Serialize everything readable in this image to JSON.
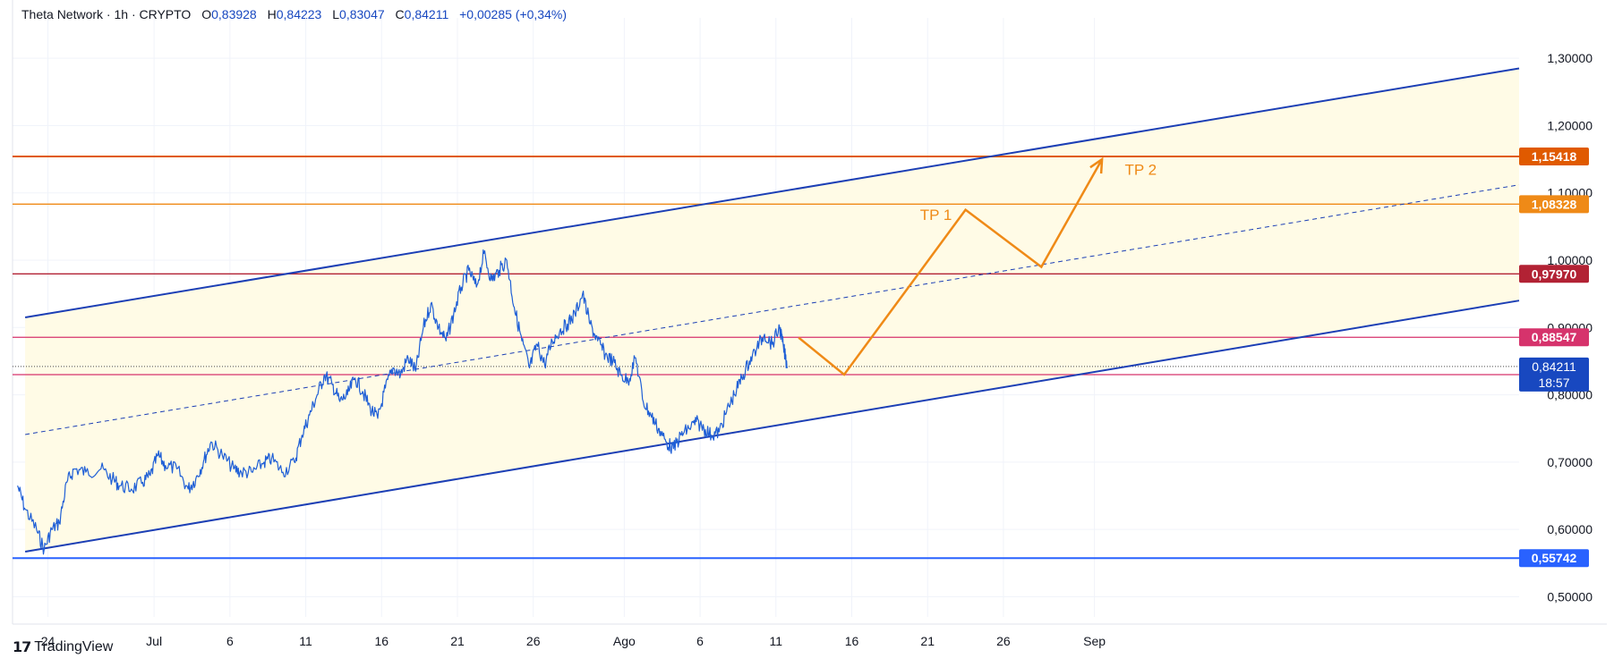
{
  "header": {
    "symbol": "Theta Network · 1h · CRYPTO",
    "open_label": "O",
    "open": "0,83928",
    "high_label": "H",
    "high": "0,84223",
    "low_label": "L",
    "low": "0,83047",
    "close_label": "C",
    "close": "0,84211",
    "change": "+0,00285 (+0,34%)"
  },
  "footer": {
    "brand": "TradingView"
  },
  "colors": {
    "price_line": "#1f5fd6",
    "channel": "#1c3fb5",
    "channel_fill": "#fffbe6",
    "orange": "#ef8a17",
    "dark_orange": "#e05a00",
    "dark_red": "#b22234",
    "magenta": "#d6336c",
    "blue_label": "#2962ff",
    "navy_label": "#1848c0"
  },
  "chart_data": {
    "type": "line",
    "symbol": "Theta Network",
    "timeframe": "1h",
    "ylim": [
      0.47,
      1.36
    ],
    "y_ticks": [
      {
        "value": 0.5,
        "label": "0,50000"
      },
      {
        "value": 0.6,
        "label": "0,60000"
      },
      {
        "value": 0.7,
        "label": "0,70000"
      },
      {
        "value": 0.8,
        "label": "0,80000"
      },
      {
        "value": 0.9,
        "label": "0,90000"
      },
      {
        "value": 1.0,
        "label": "1,00000"
      },
      {
        "value": 1.1,
        "label": "1,10000"
      },
      {
        "value": 1.2,
        "label": "1,20000"
      },
      {
        "value": 1.3,
        "label": "1,30000"
      }
    ],
    "x_ticks": [
      {
        "date": "2024-06-24",
        "label": "24"
      },
      {
        "date": "2024-07-01",
        "label": "Jul"
      },
      {
        "date": "2024-07-06",
        "label": "6"
      },
      {
        "date": "2024-07-11",
        "label": "11"
      },
      {
        "date": "2024-07-16",
        "label": "16"
      },
      {
        "date": "2024-07-21",
        "label": "21"
      },
      {
        "date": "2024-07-26",
        "label": "26"
      },
      {
        "date": "2024-08-01",
        "label": "Ago"
      },
      {
        "date": "2024-08-06",
        "label": "6"
      },
      {
        "date": "2024-08-11",
        "label": "11"
      },
      {
        "date": "2024-08-16",
        "label": "16"
      },
      {
        "date": "2024-08-21",
        "label": "21"
      },
      {
        "date": "2024-08-26",
        "label": "26"
      },
      {
        "date": "2024-09-01",
        "label": "Sep"
      }
    ],
    "price_series": {
      "name": "Theta Network",
      "points": [
        [
          "2024-06-22 00:00",
          0.665
        ],
        [
          "2024-06-22 12:00",
          0.63
        ],
        [
          "2024-06-23 06:00",
          0.6
        ],
        [
          "2024-06-23 18:00",
          0.57
        ],
        [
          "2024-06-24 06:00",
          0.6
        ],
        [
          "2024-06-24 18:00",
          0.61
        ],
        [
          "2024-06-25 06:00",
          0.67
        ],
        [
          "2024-06-25 18:00",
          0.69
        ],
        [
          "2024-06-26 12:00",
          0.685
        ],
        [
          "2024-06-27 12:00",
          0.69
        ],
        [
          "2024-06-28 06:00",
          0.675
        ],
        [
          "2024-06-28 18:00",
          0.665
        ],
        [
          "2024-06-29 12:00",
          0.66
        ],
        [
          "2024-06-30 06:00",
          0.67
        ],
        [
          "2024-06-30 18:00",
          0.68
        ],
        [
          "2024-07-01 06:00",
          0.71
        ],
        [
          "2024-07-01 18:00",
          0.695
        ],
        [
          "2024-07-02 12:00",
          0.69
        ],
        [
          "2024-07-03 06:00",
          0.66
        ],
        [
          "2024-07-03 18:00",
          0.675
        ],
        [
          "2024-07-04 06:00",
          0.7
        ],
        [
          "2024-07-04 18:00",
          0.73
        ],
        [
          "2024-07-05 12:00",
          0.71
        ],
        [
          "2024-07-06 06:00",
          0.69
        ],
        [
          "2024-07-06 18:00",
          0.685
        ],
        [
          "2024-07-07 12:00",
          0.685
        ],
        [
          "2024-07-08 06:00",
          0.7
        ],
        [
          "2024-07-08 18:00",
          0.705
        ],
        [
          "2024-07-09 12:00",
          0.685
        ],
        [
          "2024-07-10 06:00",
          0.7
        ],
        [
          "2024-07-10 18:00",
          0.74
        ],
        [
          "2024-07-11 06:00",
          0.77
        ],
        [
          "2024-07-11 18:00",
          0.8
        ],
        [
          "2024-07-12 06:00",
          0.83
        ],
        [
          "2024-07-12 18:00",
          0.815
        ],
        [
          "2024-07-13 06:00",
          0.79
        ],
        [
          "2024-07-13 18:00",
          0.8
        ],
        [
          "2024-07-14 06:00",
          0.825
        ],
        [
          "2024-07-14 18:00",
          0.805
        ],
        [
          "2024-07-15 06:00",
          0.78
        ],
        [
          "2024-07-15 18:00",
          0.765
        ],
        [
          "2024-07-16 06:00",
          0.81
        ],
        [
          "2024-07-16 18:00",
          0.84
        ],
        [
          "2024-07-17 06:00",
          0.83
        ],
        [
          "2024-07-17 18:00",
          0.855
        ],
        [
          "2024-07-18 06:00",
          0.835
        ],
        [
          "2024-07-18 18:00",
          0.9
        ],
        [
          "2024-07-19 06:00",
          0.935
        ],
        [
          "2024-07-19 18:00",
          0.9
        ],
        [
          "2024-07-20 06:00",
          0.88
        ],
        [
          "2024-07-20 18:00",
          0.92
        ],
        [
          "2024-07-21 06:00",
          0.96
        ],
        [
          "2024-07-21 18:00",
          0.985
        ],
        [
          "2024-07-22 06:00",
          0.96
        ],
        [
          "2024-07-22 18:00",
          1.01
        ],
        [
          "2024-07-23 06:00",
          0.97
        ],
        [
          "2024-07-23 18:00",
          0.985
        ],
        [
          "2024-07-24 06:00",
          1.0
        ],
        [
          "2024-07-24 18:00",
          0.93
        ],
        [
          "2024-07-25 06:00",
          0.88
        ],
        [
          "2024-07-25 18:00",
          0.84
        ],
        [
          "2024-07-26 06:00",
          0.875
        ],
        [
          "2024-07-26 18:00",
          0.845
        ],
        [
          "2024-07-27 06:00",
          0.88
        ],
        [
          "2024-07-27 18:00",
          0.895
        ],
        [
          "2024-07-28 06:00",
          0.905
        ],
        [
          "2024-07-28 18:00",
          0.92
        ],
        [
          "2024-07-29 06:00",
          0.95
        ],
        [
          "2024-07-29 18:00",
          0.905
        ],
        [
          "2024-07-30 06:00",
          0.88
        ],
        [
          "2024-07-30 18:00",
          0.86
        ],
        [
          "2024-07-31 06:00",
          0.85
        ],
        [
          "2024-07-31 18:00",
          0.83
        ],
        [
          "2024-08-01 06:00",
          0.82
        ],
        [
          "2024-08-01 18:00",
          0.855
        ],
        [
          "2024-08-02 06:00",
          0.79
        ],
        [
          "2024-08-02 18:00",
          0.77
        ],
        [
          "2024-08-03 06:00",
          0.75
        ],
        [
          "2024-08-03 18:00",
          0.73
        ],
        [
          "2024-08-04 06:00",
          0.72
        ],
        [
          "2024-08-04 18:00",
          0.74
        ],
        [
          "2024-08-05 06:00",
          0.75
        ],
        [
          "2024-08-05 18:00",
          0.76
        ],
        [
          "2024-08-06 06:00",
          0.75
        ],
        [
          "2024-08-06 18:00",
          0.74
        ],
        [
          "2024-08-07 06:00",
          0.745
        ],
        [
          "2024-08-07 18:00",
          0.775
        ],
        [
          "2024-08-08 06:00",
          0.8
        ],
        [
          "2024-08-08 18:00",
          0.825
        ],
        [
          "2024-08-09 06:00",
          0.85
        ],
        [
          "2024-08-09 18:00",
          0.87
        ],
        [
          "2024-08-10 06:00",
          0.89
        ],
        [
          "2024-08-10 18:00",
          0.875
        ],
        [
          "2024-08-11 06:00",
          0.9
        ],
        [
          "2024-08-11 12:00",
          0.87
        ],
        [
          "2024-08-11 18:00",
          0.842
        ]
      ]
    },
    "channel": {
      "upper": [
        [
          "2024-06-22 12:00",
          0.915
        ],
        [
          "2024-09-29 00:00",
          1.285
        ]
      ],
      "lower": [
        [
          "2024-06-22 12:00",
          0.567
        ],
        [
          "2024-09-29 00:00",
          0.94
        ]
      ],
      "mid": [
        [
          "2024-06-22 12:00",
          0.741
        ],
        [
          "2024-09-29 00:00",
          1.112
        ]
      ]
    },
    "projection": {
      "points": [
        [
          "2024-08-12 12:00",
          0.885
        ],
        [
          "2024-08-15 12:00",
          0.83
        ],
        [
          "2024-08-23 12:00",
          1.075
        ],
        [
          "2024-08-28 12:00",
          0.99
        ],
        [
          "2024-09-01 12:00",
          1.15
        ]
      ],
      "labels": [
        {
          "text": "TP 1",
          "date": "2024-08-20 12:00",
          "value": 1.06
        },
        {
          "text": "TP 2",
          "date": "2024-09-03 00:00",
          "value": 1.127
        }
      ]
    },
    "horizontal_levels": [
      {
        "value": 1.15418,
        "label": "1,15418",
        "color": "#e05a00"
      },
      {
        "value": 1.08328,
        "label": "1,08328",
        "color": "#ef8a17"
      },
      {
        "value": 0.9797,
        "label": "0,97970",
        "color": "#b22234"
      },
      {
        "value": 0.88547,
        "label": "0,88547",
        "color": "#d6336c"
      },
      {
        "value": 0.83,
        "label": "",
        "color": "#d6336c"
      },
      {
        "value": 0.55742,
        "label": "0,55742",
        "color": "#2962ff"
      }
    ],
    "last_price": {
      "value": 0.84211,
      "label": "0,84211",
      "countdown": "18:57"
    }
  }
}
